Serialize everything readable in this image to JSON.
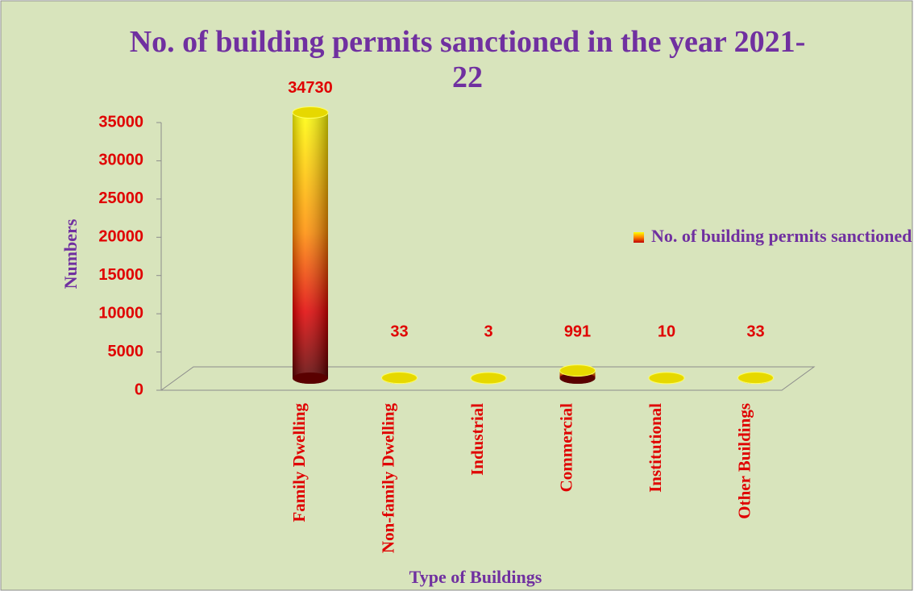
{
  "chart_data": {
    "type": "bar",
    "title": "No. of building permits sanctioned in the year 2021-22",
    "x_label": "Type of Buildings",
    "y_label": "Numbers",
    "categories": [
      "Family Dwelling",
      "Non-family Dwelling",
      "Industrial",
      "Commercial",
      "Institutional",
      "Other Buildings"
    ],
    "series": [
      {
        "name": "No. of building permits sanctioned",
        "values": [
          34730,
          33,
          3,
          991,
          10,
          33
        ]
      }
    ],
    "ylim": [
      0,
      35000
    ],
    "yticks": [
      0,
      5000,
      10000,
      15000,
      20000,
      25000,
      30000,
      35000
    ],
    "legend": "right"
  }
}
